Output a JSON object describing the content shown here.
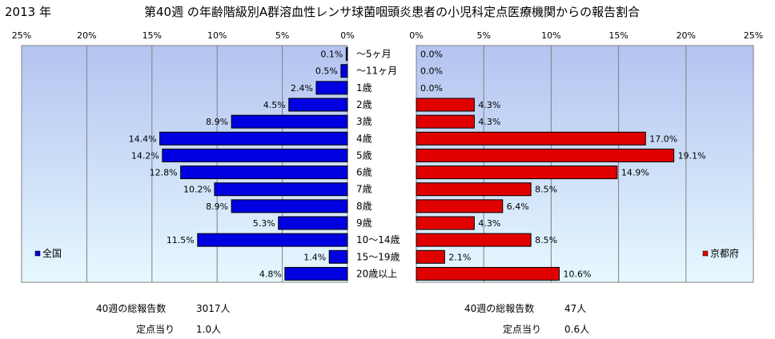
{
  "year_label": "2013 年",
  "title": "第40週 の年齢階級別A群溶血性レンサ球菌咽頭炎患者の小児科定点医療機関からの報告割合",
  "chart_data": {
    "type": "bar",
    "orientation": "horizontal",
    "categories": [
      "〜5ヶ月",
      "〜11ヶ月",
      "1歳",
      "2歳",
      "3歳",
      "4歳",
      "5歳",
      "6歳",
      "7歳",
      "8歳",
      "9歳",
      "10〜14歳",
      "15〜19歳",
      "20歳以上"
    ],
    "xlim": [
      0,
      25
    ],
    "xticks": [
      "25%",
      "20%",
      "15%",
      "10%",
      "5%",
      "0%"
    ],
    "xticks_right": [
      "0%",
      "5%",
      "10%",
      "15%",
      "20%",
      "25%"
    ],
    "series": [
      {
        "name": "全国",
        "values": [
          0.1,
          0.5,
          2.4,
          4.5,
          8.9,
          14.4,
          14.2,
          12.8,
          10.2,
          8.9,
          5.3,
          11.5,
          1.4,
          4.8
        ],
        "labels": [
          "0.1%",
          "0.5%",
          "2.4%",
          "4.5%",
          "8.9%",
          "14.4%",
          "14.2%",
          "12.8%",
          "10.2%",
          "8.9%",
          "5.3%",
          "11.5%",
          "1.4%",
          "4.8%"
        ],
        "color": "#0000e0"
      },
      {
        "name": "京都府",
        "values": [
          0.0,
          0.0,
          0.0,
          4.3,
          4.3,
          17.0,
          19.1,
          14.9,
          8.5,
          6.4,
          4.3,
          8.5,
          2.1,
          10.6
        ],
        "labels": [
          "0.0%",
          "0.0%",
          "0.0%",
          "4.3%",
          "4.3%",
          "17.0%",
          "19.1%",
          "14.9%",
          "8.5%",
          "6.4%",
          "4.3%",
          "8.5%",
          "2.1%",
          "10.6%"
        ],
        "color": "#e00000"
      }
    ],
    "grid": true
  },
  "stats": {
    "national": {
      "total_label": "40週の総報告数",
      "total_value": "3017人",
      "per_label": "定点当り",
      "per_value": "1.0人"
    },
    "kyoto": {
      "total_label": "40週の総報告数",
      "total_value": "47人",
      "per_label": "定点当り",
      "per_value": "0.6人"
    }
  },
  "colors": {
    "plot_top": "#b4c3f0",
    "plot_bottom": "#e6f9ff",
    "national": "#0000e0",
    "kyoto": "#e00000"
  }
}
